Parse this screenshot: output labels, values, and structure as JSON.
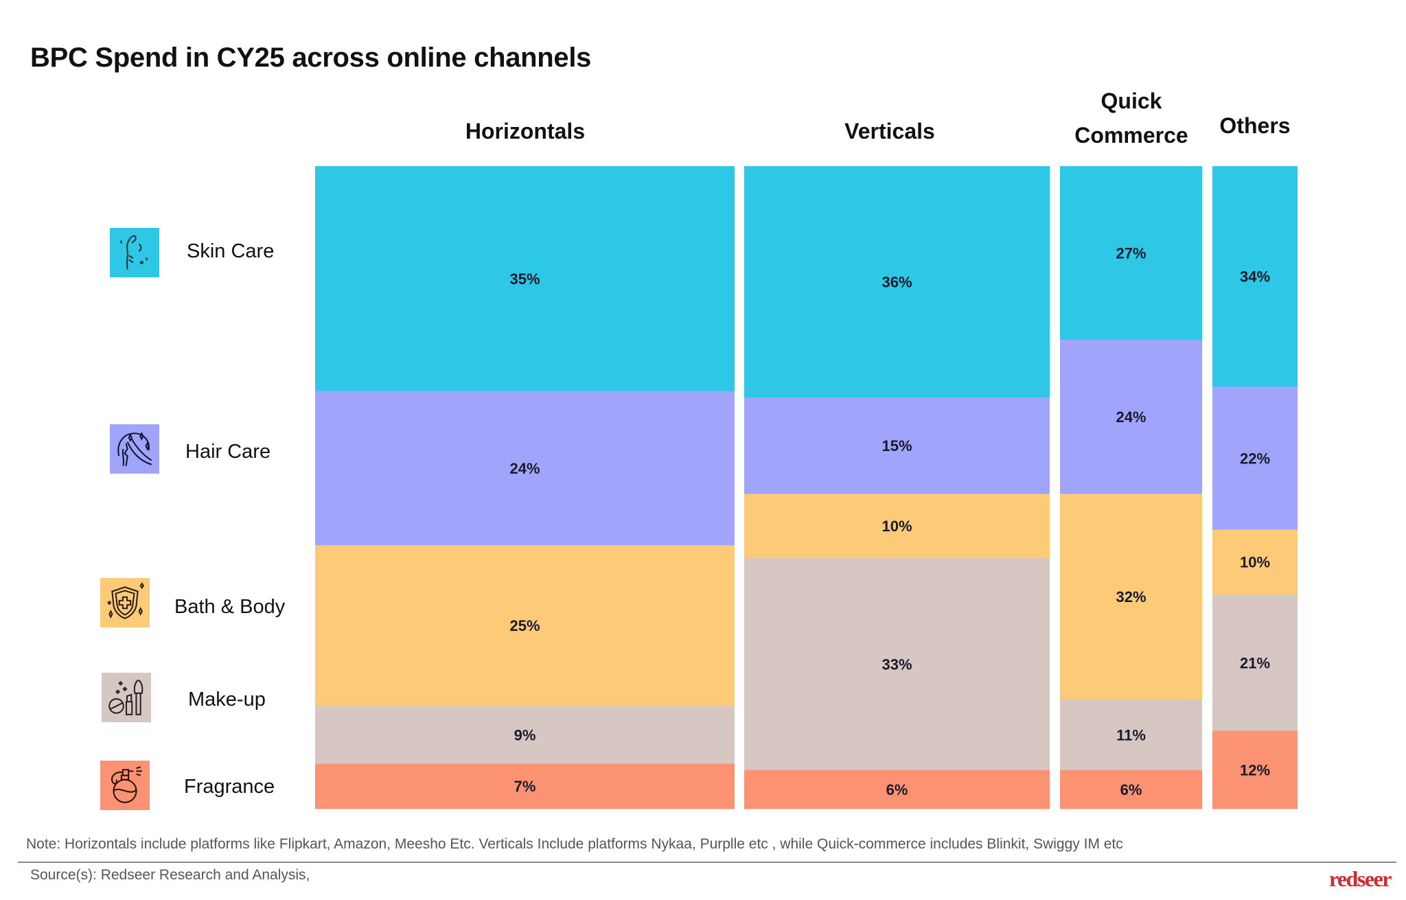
{
  "title": "BPC Spend in CY25 across online channels",
  "note": "Note: Horizontals include platforms like Flipkart, Amazon, Meesho Etc. Verticals Include platforms Nykaa, Purplle etc , while Quick-commerce includes Blinkit, Swiggy IM etc",
  "source": "Source(s): Redseer Research and Analysis,",
  "logo": "redseer",
  "colors": {
    "skin_care": "#2ec8e6",
    "hair_care": "#a1a4fb",
    "bath_body": "#fdcb78",
    "make_up": "#d7c7c3",
    "fragrance": "#fb9272",
    "logo": "#cf2b33"
  },
  "legend": [
    {
      "label": "Skin Care",
      "icon": "face-skincare-icon"
    },
    {
      "label": "Hair Care",
      "icon": "hair-woman-icon"
    },
    {
      "label": "Bath & Body",
      "icon": "shield-cross-icon"
    },
    {
      "label": "Make-up",
      "icon": "makeup-brush-icon"
    },
    {
      "label": "Fragrance",
      "icon": "perfume-bottle-icon"
    }
  ],
  "headers": {
    "horizontals": "Horizontals",
    "verticals": "Verticals",
    "quick_line1": "Quick",
    "quick_line2": "Commerce",
    "others": "Others"
  },
  "chart_data": {
    "type": "bar",
    "subtype": "marimekko-stacked-100",
    "title": "BPC Spend in CY25 across online channels",
    "categories": [
      "Horizontals",
      "Verticals",
      "Quick Commerce",
      "Others"
    ],
    "series": [
      {
        "name": "Skin Care",
        "values": [
          35,
          36,
          27,
          34
        ],
        "labels": [
          "35%",
          "36%",
          "27%",
          "34%"
        ]
      },
      {
        "name": "Hair Care",
        "values": [
          24,
          15,
          24,
          22
        ],
        "labels": [
          "24%",
          "15%",
          "24%",
          "22%"
        ]
      },
      {
        "name": "Bath & Body",
        "values": [
          25,
          10,
          32,
          10
        ],
        "labels": [
          "25%",
          "10%",
          "32%",
          "10%"
        ]
      },
      {
        "name": "Make-up",
        "values": [
          9,
          33,
          11,
          21
        ],
        "labels": [
          "9%",
          "33%",
          "11%",
          "21%"
        ]
      },
      {
        "name": "Fragrance",
        "values": [
          7,
          6,
          6,
          12
        ],
        "labels": [
          "7%",
          "6%",
          "6%",
          "12%"
        ]
      }
    ],
    "xlabel": "",
    "ylabel": "",
    "ylim": [
      0,
      100
    ],
    "grid": false,
    "legend_placement": "left"
  }
}
